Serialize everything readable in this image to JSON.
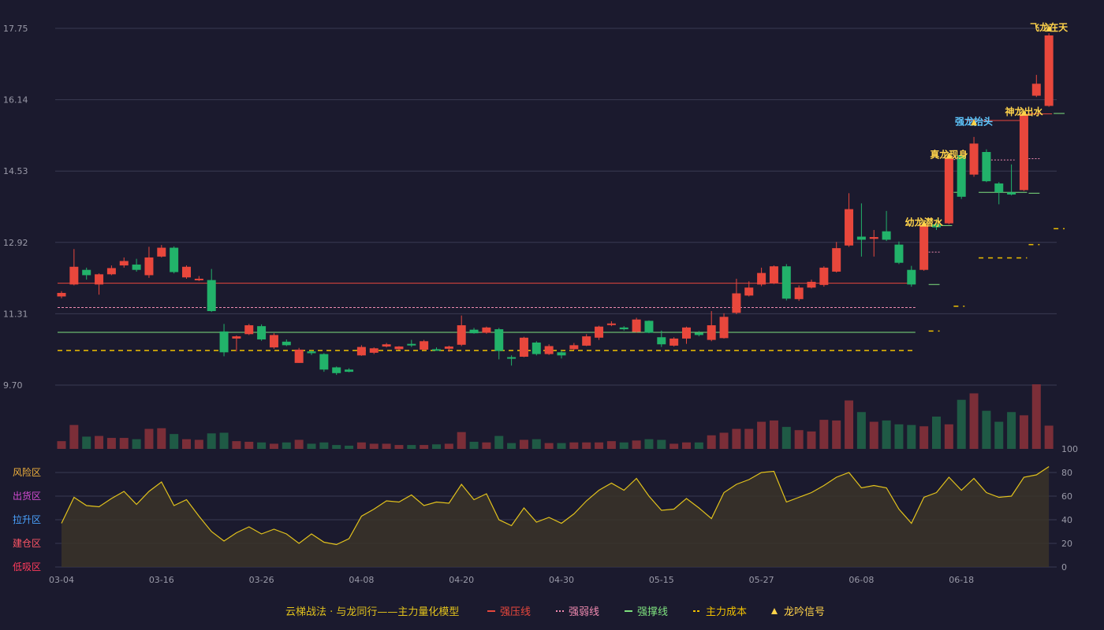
{
  "colors": {
    "up": "#e8473c",
    "down": "#22b26a",
    "resist": "#e8473c",
    "weak": "#f08ab0",
    "support": "#7ee07e",
    "cost": "#f0c000",
    "osc": "#e2c21c",
    "grid": "#3a3a52",
    "zone_risk": "#f0b13c",
    "zone_sell": "#d24bd2",
    "zone_rise": "#4aa3ff",
    "zone_build": "#ff5566",
    "zone_low": "#ff3b5c",
    "sig_yellow": "#ffd34a",
    "sig_blue": "#5fc8ff"
  },
  "chart_data": [
    {
      "type": "candlestick",
      "title": "",
      "y_ticks": [
        "17.75",
        "16.14",
        "14.53",
        "12.92",
        "11.31",
        "9.70"
      ],
      "ylim": [
        9.7,
        17.75
      ],
      "x_tick_labels": [
        "03-04",
        "03-16",
        "03-26",
        "04-08",
        "04-20",
        "04-30",
        "05-15",
        "05-27",
        "06-08",
        "06-18"
      ],
      "candles": [
        [
          11.7,
          11.78,
          11.66,
          11.82
        ],
        [
          11.97,
          12.37,
          11.95,
          12.77
        ],
        [
          12.3,
          12.18,
          12.08,
          12.35
        ],
        [
          11.97,
          12.2,
          11.74,
          12.22
        ],
        [
          12.2,
          12.34,
          12.18,
          12.4
        ],
        [
          12.4,
          12.5,
          12.35,
          12.58
        ],
        [
          12.42,
          12.3,
          12.26,
          12.55
        ],
        [
          12.18,
          12.58,
          12.12,
          12.82
        ],
        [
          12.6,
          12.8,
          12.58,
          12.86
        ],
        [
          12.8,
          12.25,
          12.22,
          12.83
        ],
        [
          12.13,
          12.37,
          12.1,
          12.4
        ],
        [
          12.07,
          12.1,
          12.05,
          12.16
        ],
        [
          12.07,
          11.37,
          11.35,
          12.32
        ],
        [
          10.91,
          10.44,
          10.35,
          11.08
        ],
        [
          10.75,
          10.8,
          10.46,
          10.82
        ],
        [
          10.85,
          11.05,
          10.83,
          11.08
        ],
        [
          11.03,
          10.73,
          10.7,
          11.07
        ],
        [
          10.55,
          10.83,
          10.52,
          10.87
        ],
        [
          10.68,
          10.6,
          10.58,
          10.73
        ],
        [
          10.2,
          10.5,
          10.2,
          10.54
        ],
        [
          10.46,
          10.42,
          10.38,
          10.48
        ],
        [
          10.4,
          10.05,
          10.0,
          10.42
        ],
        [
          10.1,
          9.97,
          9.93,
          10.12
        ],
        [
          10.05,
          10.0,
          9.99,
          10.08
        ],
        [
          10.37,
          10.56,
          10.36,
          10.6
        ],
        [
          10.43,
          10.53,
          10.4,
          10.55
        ],
        [
          10.57,
          10.62,
          10.55,
          10.65
        ],
        [
          10.51,
          10.57,
          10.49,
          10.58
        ],
        [
          10.63,
          10.6,
          10.56,
          10.72
        ],
        [
          10.5,
          10.69,
          10.48,
          10.72
        ],
        [
          10.51,
          10.5,
          10.48,
          10.55
        ],
        [
          10.52,
          10.57,
          10.45,
          10.59
        ],
        [
          10.61,
          11.05,
          10.58,
          11.27
        ],
        [
          10.95,
          10.87,
          10.86,
          10.99
        ],
        [
          10.88,
          11.0,
          10.86,
          11.02
        ],
        [
          10.96,
          10.47,
          10.28,
          10.99
        ],
        [
          10.33,
          10.3,
          10.14,
          10.37
        ],
        [
          10.34,
          10.77,
          10.33,
          10.79
        ],
        [
          10.66,
          10.4,
          10.37,
          10.69
        ],
        [
          10.4,
          10.58,
          10.38,
          10.62
        ],
        [
          10.44,
          10.37,
          10.3,
          10.48
        ],
        [
          10.51,
          10.6,
          10.49,
          10.65
        ],
        [
          10.59,
          10.8,
          10.58,
          10.85
        ],
        [
          10.77,
          11.02,
          10.72,
          11.04
        ],
        [
          11.06,
          11.09,
          11.03,
          11.14
        ],
        [
          11.0,
          10.96,
          10.93,
          11.03
        ],
        [
          10.9,
          11.18,
          10.88,
          11.22
        ],
        [
          11.15,
          10.88,
          10.87,
          11.16
        ],
        [
          10.78,
          10.62,
          10.56,
          10.93
        ],
        [
          10.59,
          10.75,
          10.57,
          10.78
        ],
        [
          10.75,
          11.0,
          10.63,
          11.02
        ],
        [
          10.88,
          10.83,
          10.8,
          10.92
        ],
        [
          10.72,
          11.05,
          10.69,
          11.37
        ],
        [
          10.76,
          11.24,
          10.75,
          11.32
        ],
        [
          11.33,
          11.77,
          11.3,
          12.1
        ],
        [
          11.72,
          11.9,
          11.7,
          12.04
        ],
        [
          11.97,
          12.23,
          11.93,
          12.35
        ],
        [
          12.0,
          12.38,
          11.98,
          12.4
        ],
        [
          12.38,
          11.65,
          11.61,
          12.43
        ],
        [
          11.64,
          11.9,
          11.6,
          11.95
        ],
        [
          11.9,
          12.03,
          11.88,
          12.08
        ],
        [
          11.96,
          12.35,
          11.92,
          12.38
        ],
        [
          12.26,
          12.79,
          12.24,
          12.93
        ],
        [
          12.85,
          13.67,
          12.82,
          14.03
        ],
        [
          13.05,
          12.98,
          12.6,
          13.8
        ],
        [
          13.0,
          13.04,
          12.6,
          13.2
        ],
        [
          13.17,
          12.98,
          12.95,
          13.63
        ],
        [
          12.87,
          12.46,
          12.43,
          12.94
        ],
        [
          12.3,
          11.97,
          11.92,
          12.39
        ],
        [
          12.3,
          13.32,
          12.28,
          13.38
        ],
        [
          13.33,
          13.26,
          13.2,
          13.45
        ],
        [
          13.35,
          14.84,
          13.33,
          14.88
        ],
        [
          14.89,
          13.95,
          13.9,
          14.92
        ],
        [
          14.45,
          15.15,
          14.4,
          15.3
        ],
        [
          14.96,
          14.3,
          14.28,
          15.02
        ],
        [
          14.25,
          14.05,
          13.78,
          14.28
        ],
        [
          14.05,
          14.0,
          13.98,
          14.68
        ],
        [
          14.1,
          15.82,
          14.08,
          15.87
        ],
        [
          16.23,
          16.5,
          16.2,
          16.7
        ],
        [
          16.0,
          17.59,
          15.98,
          17.64
        ]
      ],
      "level_lines": [
        {
          "kind": "resist",
          "value": 12.0,
          "from_index": 0,
          "to_index": 68
        },
        {
          "kind": "weak",
          "value": 11.45,
          "from_index": 0,
          "to_index": 68
        },
        {
          "kind": "support",
          "value": 10.89,
          "from_index": 0,
          "to_index": 68
        },
        {
          "kind": "cost",
          "value": 10.48,
          "from_index": 0,
          "to_index": 68
        }
      ],
      "level_segments": [
        {
          "kind": "resist",
          "value": 15.67,
          "from_index": 72,
          "to_index": 77
        },
        {
          "kind": "resist",
          "value": 15.82,
          "from_index": 77,
          "to_index": 79
        },
        {
          "kind": "weak",
          "value": 12.7,
          "from_index": 69,
          "to_index": 70
        },
        {
          "kind": "weak",
          "value": 14.79,
          "from_index": 71,
          "to_index": 72
        },
        {
          "kind": "weak",
          "value": 14.78,
          "from_index": 74,
          "to_index": 76
        },
        {
          "kind": "weak",
          "value": 14.81,
          "from_index": 77,
          "to_index": 78
        },
        {
          "kind": "support",
          "value": 11.97,
          "from_index": 69,
          "to_index": 70
        },
        {
          "kind": "support",
          "value": 13.3,
          "from_index": 70,
          "to_index": 71
        },
        {
          "kind": "support",
          "value": 14.05,
          "from_index": 71,
          "to_index": 72
        },
        {
          "kind": "support",
          "value": 14.05,
          "from_index": 73,
          "to_index": 77
        },
        {
          "kind": "support",
          "value": 14.03,
          "from_index": 77,
          "to_index": 78
        },
        {
          "kind": "support",
          "value": 15.83,
          "from_index": 79,
          "to_index": 80
        },
        {
          "kind": "cost",
          "value": 10.92,
          "from_index": 69,
          "to_index": 70
        },
        {
          "kind": "cost",
          "value": 11.48,
          "from_index": 71,
          "to_index": 72
        },
        {
          "kind": "cost",
          "value": 12.57,
          "from_index": 73,
          "to_index": 77
        },
        {
          "kind": "cost",
          "value": 12.87,
          "from_index": 77,
          "to_index": 78
        },
        {
          "kind": "cost",
          "value": 13.23,
          "from_index": 79,
          "to_index": 80
        }
      ],
      "signals": [
        {
          "index": 69,
          "label": "幼龙潜水",
          "color": "sig_yellow",
          "price": 13.35
        },
        {
          "index": 71,
          "label": "真龙现身",
          "color": "sig_yellow",
          "price": 14.88
        },
        {
          "index": 73,
          "label": "强龙抬头",
          "color": "sig_blue",
          "price": 15.63
        },
        {
          "index": 77,
          "label": "神龙出水",
          "color": "sig_yellow",
          "price": 15.85
        },
        {
          "index": 79,
          "label": "飞龙在天",
          "color": "sig_yellow",
          "price": 17.75
        }
      ]
    },
    {
      "type": "bar",
      "title": "",
      "volumes": [
        0.12,
        0.37,
        0.19,
        0.2,
        0.17,
        0.17,
        0.15,
        0.31,
        0.32,
        0.23,
        0.15,
        0.14,
        0.24,
        0.25,
        0.12,
        0.11,
        0.1,
        0.08,
        0.1,
        0.14,
        0.08,
        0.1,
        0.06,
        0.05,
        0.1,
        0.08,
        0.08,
        0.06,
        0.06,
        0.06,
        0.07,
        0.08,
        0.26,
        0.11,
        0.1,
        0.2,
        0.09,
        0.14,
        0.15,
        0.09,
        0.09,
        0.1,
        0.1,
        0.1,
        0.12,
        0.1,
        0.13,
        0.15,
        0.14,
        0.08,
        0.1,
        0.1,
        0.21,
        0.25,
        0.31,
        0.31,
        0.42,
        0.44,
        0.34,
        0.29,
        0.27,
        0.45,
        0.44,
        0.75,
        0.57,
        0.42,
        0.44,
        0.38,
        0.37,
        0.35,
        0.5,
        0.38,
        0.76,
        0.86,
        0.59,
        0.42,
        0.57,
        0.52,
        1.0,
        0.36
      ]
    },
    {
      "type": "area",
      "title": "",
      "y_ticks": [
        "100",
        "80",
        "60",
        "40",
        "20",
        "0"
      ],
      "ylim": [
        0,
        100
      ],
      "zones": [
        {
          "label": "风险区",
          "color": "zone_risk"
        },
        {
          "label": "出货区",
          "color": "zone_sell"
        },
        {
          "label": "拉升区",
          "color": "zone_rise"
        },
        {
          "label": "建仓区",
          "color": "zone_build"
        },
        {
          "label": "低吸区",
          "color": "zone_low"
        }
      ],
      "values": [
        37,
        59,
        52,
        51,
        58,
        64,
        53,
        64,
        72,
        52,
        57,
        43,
        30,
        22,
        29,
        34,
        28,
        32,
        28,
        20,
        28,
        21,
        19,
        24,
        43,
        49,
        56,
        55,
        61,
        52,
        55,
        54,
        70,
        57,
        62,
        40,
        35,
        50,
        38,
        42,
        37,
        45,
        56,
        65,
        71,
        65,
        75,
        60,
        48,
        49,
        58,
        50,
        41,
        63,
        70,
        74,
        80,
        81,
        55,
        59,
        63,
        69,
        76,
        80,
        67,
        69,
        67,
        49,
        37,
        59,
        63,
        76,
        65,
        75,
        63,
        59,
        60,
        76,
        78,
        85
      ]
    }
  ],
  "legend": {
    "title": "云梯战法 · 与龙同行——主力量化模型",
    "items": [
      {
        "label": "强压线",
        "kind": "resist"
      },
      {
        "label": "强弱线",
        "kind": "weak"
      },
      {
        "label": "强撑线",
        "kind": "support"
      },
      {
        "label": "主力成本",
        "kind": "cost"
      },
      {
        "label": "龙吟信号",
        "kind": "signal"
      }
    ]
  }
}
